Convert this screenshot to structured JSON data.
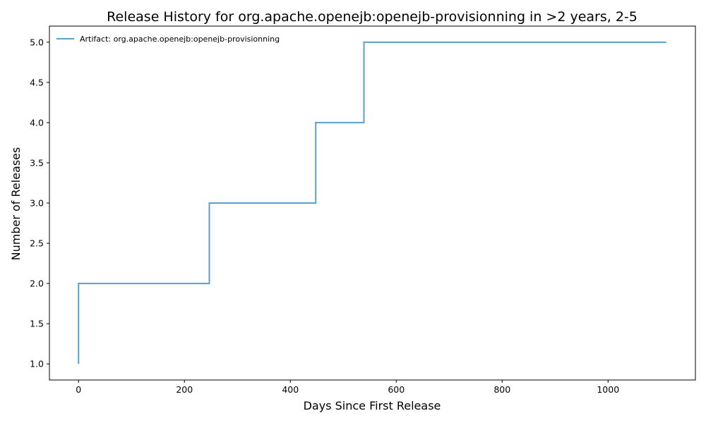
{
  "chart_data": {
    "type": "line",
    "step": "post",
    "title": "Release History for org.apache.openejb:openejb-provisionning in >2 years, 2-5",
    "xlabel": "Days Since First Release",
    "ylabel": "Number of Releases",
    "xlim": [
      -55,
      1165
    ],
    "ylim": [
      0.8,
      5.2
    ],
    "x_ticks": [
      0,
      200,
      400,
      600,
      800,
      1000
    ],
    "y_ticks": [
      1.0,
      1.5,
      2.0,
      2.5,
      3.0,
      3.5,
      4.0,
      4.5,
      5.0
    ],
    "grid": false,
    "legend_position": "upper-left",
    "series": [
      {
        "name": "Artifact: org.apache.openejb:openejb-provisionning",
        "color": "#5b9ec9",
        "x": [
          0,
          0,
          247,
          448,
          539,
          1110
        ],
        "y": [
          1,
          2,
          3,
          4,
          5,
          5
        ]
      }
    ]
  }
}
